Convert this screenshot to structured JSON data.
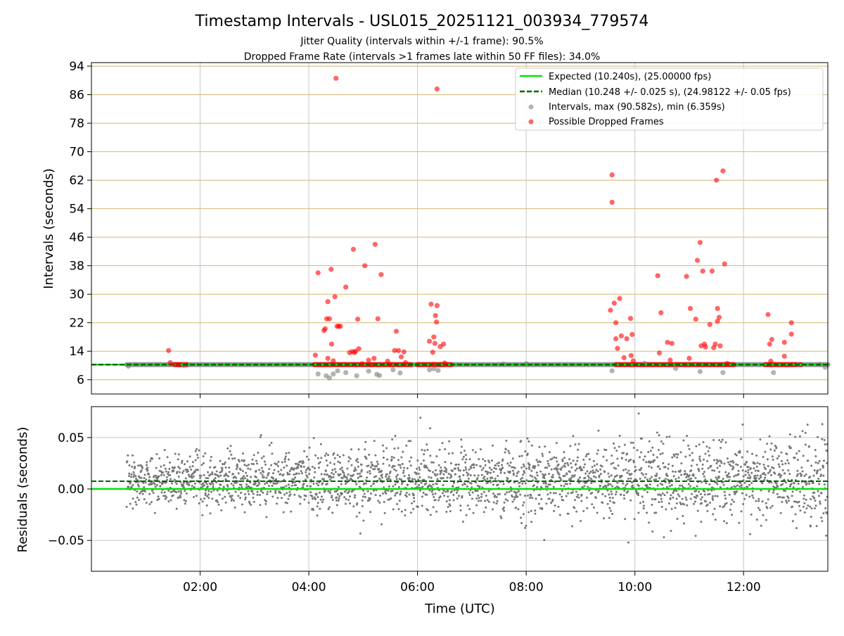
{
  "figure": {
    "title": "Timestamp Intervals - USL015_20251121_003934_779574",
    "subtitle_1": "Jitter Quality (intervals within +/-1 frame): 90.5%",
    "subtitle_2": "Dropped Frame Rate (intervals >1 frames late within 50 FF files): 34.0%"
  },
  "colors": {
    "expected": "#00e600",
    "median": "#006400",
    "interval_points": "#808080",
    "dropped_points": "#ff0000",
    "hgrid_top": "#d4b870",
    "vgrid": "#c8c8c8",
    "residual_points": "#777777"
  },
  "chart_data": [
    {
      "type": "scatter",
      "xlabel": "",
      "ylabel": "Intervals (seconds)",
      "xlim_hours": [
        0.0,
        13.55
      ],
      "ylim": [
        2,
        95
      ],
      "yticks": [
        6,
        14,
        22,
        30,
        38,
        46,
        54,
        62,
        70,
        78,
        86,
        94
      ],
      "xticks_hours": [
        2,
        4,
        6,
        8,
        10,
        12
      ],
      "grid": "on",
      "legend_position": "top-right",
      "legend": [
        "Expected (10.240s), (25.00000 fps)",
        "Median (10.248 +/- 0.025 s), (24.98122 +/- 0.05 fps)",
        "Intervals, max (90.582s), min (6.359s)",
        "Possible Dropped Frames"
      ],
      "expected_line": 10.24,
      "median_line": 10.248,
      "interval_band": {
        "x_start_hours": 0.65,
        "x_end_hours": 13.55,
        "y": 10.24
      },
      "dropped_band_ranges_hours": [
        [
          1.55,
          1.75
        ],
        [
          4.1,
          5.88
        ],
        [
          6.0,
          6.62
        ],
        [
          9.65,
          11.82
        ],
        [
          12.4,
          13.05
        ]
      ],
      "interval_outliers": [
        [
          0.68,
          9.8
        ],
        [
          1.7,
          10.0
        ],
        [
          4.17,
          7.6
        ],
        [
          4.32,
          7.1
        ],
        [
          4.38,
          6.5
        ],
        [
          4.45,
          7.6
        ],
        [
          4.53,
          8.5
        ],
        [
          4.68,
          8.0
        ],
        [
          4.88,
          7.1
        ],
        [
          5.1,
          8.4
        ],
        [
          5.25,
          7.5
        ],
        [
          5.3,
          7.2
        ],
        [
          5.55,
          8.8
        ],
        [
          5.68,
          7.9
        ],
        [
          6.22,
          8.8
        ],
        [
          6.3,
          9.1
        ],
        [
          6.38,
          8.6
        ],
        [
          7.58,
          10.4
        ],
        [
          8.0,
          10.5
        ],
        [
          9.58,
          8.5
        ],
        [
          10.18,
          10.6
        ],
        [
          10.75,
          9.2
        ],
        [
          11.2,
          8.3
        ],
        [
          11.62,
          8.0
        ],
        [
          12.55,
          8.0
        ],
        [
          13.0,
          10.2
        ],
        [
          13.4,
          10.3
        ],
        [
          13.5,
          9.5
        ]
      ],
      "dropped_points": [
        [
          1.42,
          14.2
        ],
        [
          1.45,
          10.8
        ],
        [
          1.52,
          10.3
        ],
        [
          1.6,
          10.2
        ],
        [
          4.12,
          12.9
        ],
        [
          4.17,
          36.0
        ],
        [
          4.28,
          19.8
        ],
        [
          4.3,
          20.3
        ],
        [
          4.33,
          23.1
        ],
        [
          4.35,
          27.9
        ],
        [
          4.35,
          12.0
        ],
        [
          4.38,
          23.1
        ],
        [
          4.41,
          37.0
        ],
        [
          4.42,
          16.0
        ],
        [
          4.45,
          11.3
        ],
        [
          4.48,
          29.3
        ],
        [
          4.5,
          90.6
        ],
        [
          4.52,
          21.0
        ],
        [
          4.55,
          21.0
        ],
        [
          4.58,
          21.0
        ],
        [
          4.68,
          32.0
        ],
        [
          4.75,
          13.6
        ],
        [
          4.8,
          13.9
        ],
        [
          4.82,
          42.6
        ],
        [
          4.84,
          13.6
        ],
        [
          4.86,
          14.0
        ],
        [
          4.9,
          23.0
        ],
        [
          4.92,
          14.7
        ],
        [
          4.98,
          10.5
        ],
        [
          5.03,
          38.0
        ],
        [
          5.1,
          11.5
        ],
        [
          5.15,
          10.2
        ],
        [
          5.2,
          12.0
        ],
        [
          5.22,
          44.0
        ],
        [
          5.27,
          23.1
        ],
        [
          5.33,
          35.5
        ],
        [
          5.45,
          11.2
        ],
        [
          5.5,
          10.3
        ],
        [
          5.58,
          14.2
        ],
        [
          5.61,
          19.6
        ],
        [
          5.65,
          14.2
        ],
        [
          5.7,
          12.4
        ],
        [
          5.75,
          13.8
        ],
        [
          5.78,
          10.8
        ],
        [
          6.22,
          16.8
        ],
        [
          6.25,
          27.2
        ],
        [
          6.28,
          13.7
        ],
        [
          6.3,
          18.0
        ],
        [
          6.3,
          10.3
        ],
        [
          6.32,
          16.2
        ],
        [
          6.33,
          24.0
        ],
        [
          6.35,
          22.2
        ],
        [
          6.36,
          26.8
        ],
        [
          6.36,
          87.6
        ],
        [
          6.42,
          15.3
        ],
        [
          6.48,
          16.0
        ],
        [
          6.5,
          10.7
        ],
        [
          9.55,
          25.5
        ],
        [
          9.58,
          63.5
        ],
        [
          9.58,
          55.8
        ],
        [
          9.62,
          27.5
        ],
        [
          9.65,
          22.0
        ],
        [
          9.65,
          17.5
        ],
        [
          9.68,
          14.8
        ],
        [
          9.72,
          28.8
        ],
        [
          9.75,
          18.3
        ],
        [
          9.8,
          12.2
        ],
        [
          9.85,
          17.5
        ],
        [
          9.92,
          23.2
        ],
        [
          9.93,
          12.8
        ],
        [
          9.95,
          18.7
        ],
        [
          9.97,
          11.3
        ],
        [
          10.42,
          35.2
        ],
        [
          10.45,
          13.5
        ],
        [
          10.48,
          24.8
        ],
        [
          10.6,
          16.5
        ],
        [
          10.65,
          11.5
        ],
        [
          10.68,
          16.2
        ],
        [
          10.95,
          35.0
        ],
        [
          11.0,
          12.0
        ],
        [
          11.02,
          26.0
        ],
        [
          11.12,
          23.0
        ],
        [
          11.15,
          39.5
        ],
        [
          11.2,
          44.5
        ],
        [
          11.22,
          15.5
        ],
        [
          11.25,
          36.5
        ],
        [
          11.28,
          16.0
        ],
        [
          11.3,
          15.2
        ],
        [
          11.38,
          21.5
        ],
        [
          11.42,
          36.5
        ],
        [
          11.45,
          15.0
        ],
        [
          11.48,
          16.0
        ],
        [
          11.5,
          62.0
        ],
        [
          11.52,
          22.4
        ],
        [
          11.52,
          26.0
        ],
        [
          11.55,
          23.5
        ],
        [
          11.57,
          15.5
        ],
        [
          11.62,
          64.6
        ],
        [
          11.65,
          38.5
        ],
        [
          11.7,
          10.6
        ],
        [
          12.45,
          24.3
        ],
        [
          12.48,
          16.0
        ],
        [
          12.5,
          11.2
        ],
        [
          12.52,
          17.3
        ],
        [
          12.75,
          16.5
        ],
        [
          12.75,
          12.6
        ],
        [
          12.88,
          22.0
        ],
        [
          12.88,
          18.8
        ]
      ]
    },
    {
      "type": "scatter",
      "xlabel": "Time (UTC)",
      "ylabel": "Residuals (seconds)",
      "xlim_hours": [
        0.0,
        13.55
      ],
      "ylim": [
        -0.08,
        0.08
      ],
      "yticks": [
        -0.05,
        0.0,
        0.05
      ],
      "ytick_labels": [
        "−0.05",
        "0.00",
        "0.05"
      ],
      "xticks_hours": [
        2,
        4,
        6,
        8,
        10,
        12
      ],
      "xtick_labels": [
        "02:00",
        "04:00",
        "06:00",
        "08:00",
        "10:00",
        "12:00"
      ],
      "grid": "on",
      "expected_line": 0.0,
      "median_line": 0.0075,
      "points": {
        "x_start_hours": 0.65,
        "x_end_hours": 13.55,
        "count": 2600,
        "center": 0.008,
        "spread_start": 0.013,
        "spread_end": 0.021,
        "seed": 42
      }
    }
  ]
}
